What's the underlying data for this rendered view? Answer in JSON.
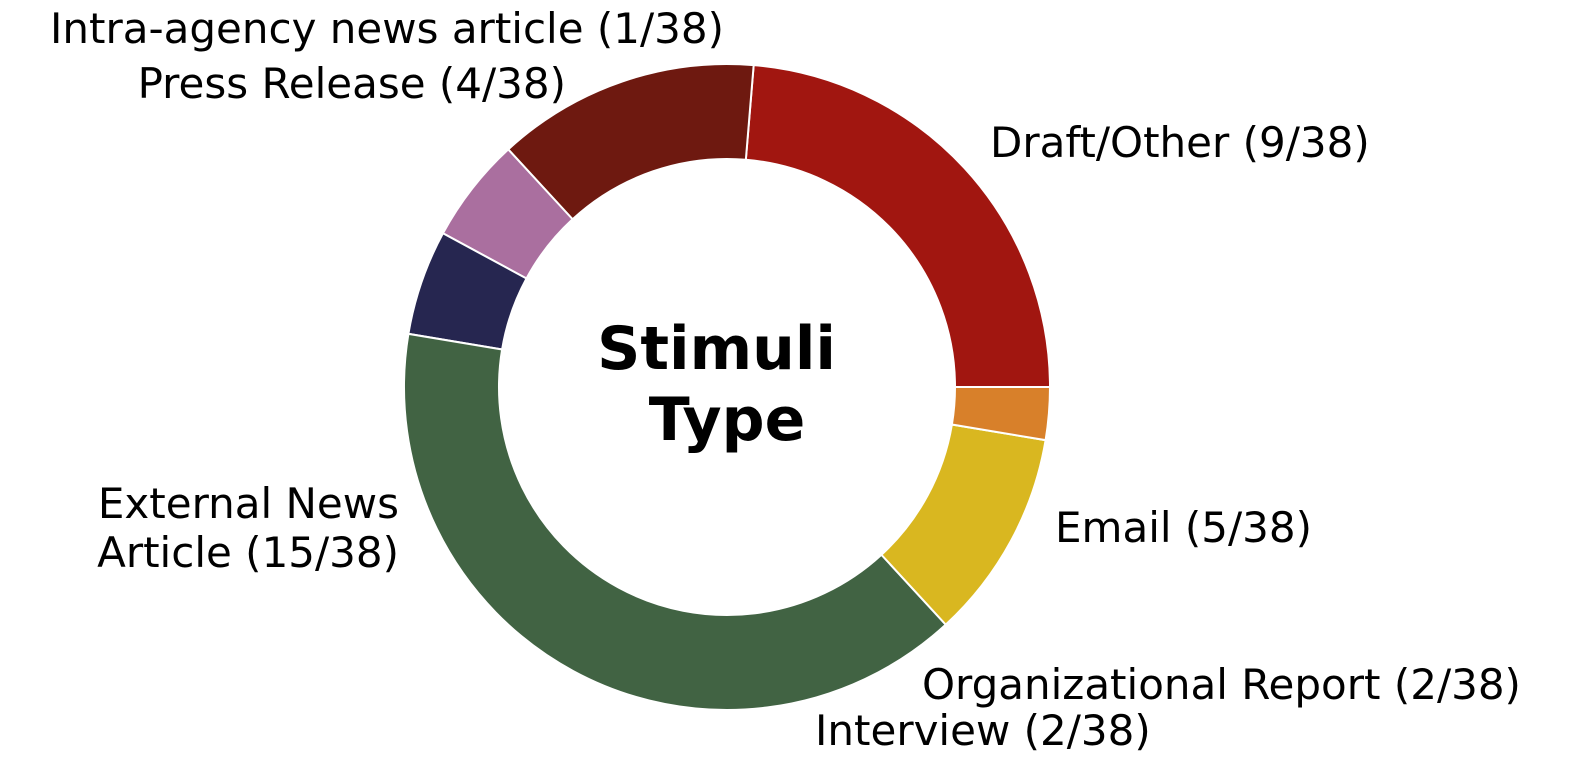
{
  "chart_data": {
    "type": "pie",
    "variant": "donut",
    "title": "Stimuli Type",
    "title_lines": [
      "Stimuli",
      "Type"
    ],
    "total": 38,
    "slices": [
      {
        "name": "Draft/Other",
        "value": 9,
        "label": "Draft/Other (9/38)",
        "color": "#a11610"
      },
      {
        "name": "Email",
        "value": 5,
        "label": "Email (5/38)",
        "color": "#6e1910"
      },
      {
        "name": "Organizational Report",
        "value": 2,
        "label": "Organizational Report (2/38)",
        "color": "#aa6f9f"
      },
      {
        "name": "Interview",
        "value": 2,
        "label": "Interview (2/38)",
        "color": "#262650"
      },
      {
        "name": "External News Article",
        "value": 15,
        "label": "External News Article (15/38)",
        "label_lines": [
          "External News",
          "Article (15/38)"
        ],
        "color": "#416343"
      },
      {
        "name": "Press Release",
        "value": 4,
        "label": "Press Release (4/38)",
        "color": "#d9b720"
      },
      {
        "name": "Intra-agency news article",
        "value": 1,
        "label": "Intra-agency news article (1/38)",
        "color": "#d8802a"
      }
    ]
  }
}
